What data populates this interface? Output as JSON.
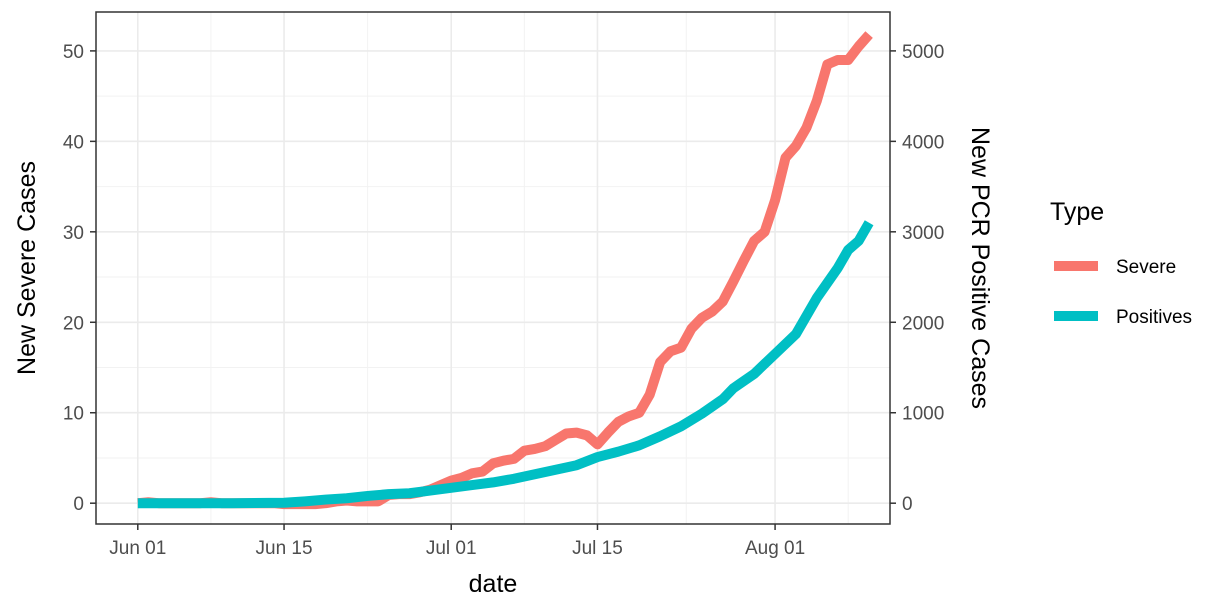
{
  "chart_data": {
    "type": "line",
    "x_type": "date",
    "x_tick_labels": [
      "Jun 01",
      "Jun 15",
      "Jul 01",
      "Jul 15",
      "Aug 01"
    ],
    "x_tick_dates": [
      "2020-06-01",
      "2020-06-15",
      "2020-07-01",
      "2020-07-15",
      "2020-08-01"
    ],
    "xlim": [
      "2020-05-28",
      "2020-08-12"
    ],
    "xlabel": "date",
    "ylabel": "New Severe Cases",
    "ylabel_right": "New PCR Positive Cases",
    "ylim": [
      -2.3,
      54.3
    ],
    "ylim_right": [
      -230,
      5430
    ],
    "y_ticks": [
      0,
      10,
      20,
      30,
      40,
      50
    ],
    "y_ticks_right": [
      0,
      1000,
      2000,
      3000,
      4000,
      5000
    ],
    "grid": true,
    "legend": {
      "title": "Type",
      "position": "right"
    },
    "series": [
      {
        "name": "Severe",
        "axis": "left",
        "color": "#F8766D",
        "points": [
          [
            "2020-06-01",
            0.0
          ],
          [
            "2020-06-02",
            0.1
          ],
          [
            "2020-06-03",
            0.0
          ],
          [
            "2020-06-04",
            0.0
          ],
          [
            "2020-06-05",
            0.0
          ],
          [
            "2020-06-06",
            0.0
          ],
          [
            "2020-06-07",
            0.0
          ],
          [
            "2020-06-08",
            0.1
          ],
          [
            "2020-06-09",
            0.0
          ],
          [
            "2020-06-10",
            0.0
          ],
          [
            "2020-06-11",
            0.0
          ],
          [
            "2020-06-12",
            0.0
          ],
          [
            "2020-06-13",
            0.0
          ],
          [
            "2020-06-14",
            0.0
          ],
          [
            "2020-06-15",
            -0.1
          ],
          [
            "2020-06-16",
            -0.1
          ],
          [
            "2020-06-17",
            -0.1
          ],
          [
            "2020-06-18",
            -0.1
          ],
          [
            "2020-06-19",
            0.0
          ],
          [
            "2020-06-20",
            0.2
          ],
          [
            "2020-06-21",
            0.3
          ],
          [
            "2020-06-22",
            0.2
          ],
          [
            "2020-06-23",
            0.2
          ],
          [
            "2020-06-24",
            0.2
          ],
          [
            "2020-06-25",
            0.9
          ],
          [
            "2020-06-26",
            1.0
          ],
          [
            "2020-06-27",
            1.0
          ],
          [
            "2020-06-28",
            1.2
          ],
          [
            "2020-06-29",
            1.5
          ],
          [
            "2020-06-30",
            2.0
          ],
          [
            "2020-07-01",
            2.5
          ],
          [
            "2020-07-02",
            2.8
          ],
          [
            "2020-07-03",
            3.3
          ],
          [
            "2020-07-04",
            3.5
          ],
          [
            "2020-07-05",
            4.4
          ],
          [
            "2020-07-06",
            4.7
          ],
          [
            "2020-07-07",
            4.9
          ],
          [
            "2020-07-08",
            5.8
          ],
          [
            "2020-07-09",
            6.0
          ],
          [
            "2020-07-10",
            6.3
          ],
          [
            "2020-07-11",
            7.0
          ],
          [
            "2020-07-12",
            7.7
          ],
          [
            "2020-07-13",
            7.8
          ],
          [
            "2020-07-14",
            7.5
          ],
          [
            "2020-07-15",
            6.5
          ],
          [
            "2020-07-16",
            7.8
          ],
          [
            "2020-07-17",
            9.0
          ],
          [
            "2020-07-18",
            9.6
          ],
          [
            "2020-07-19",
            10.0
          ],
          [
            "2020-07-20",
            12.0
          ],
          [
            "2020-07-21",
            15.6
          ],
          [
            "2020-07-22",
            16.8
          ],
          [
            "2020-07-23",
            17.2
          ],
          [
            "2020-07-24",
            19.3
          ],
          [
            "2020-07-25",
            20.5
          ],
          [
            "2020-07-26",
            21.2
          ],
          [
            "2020-07-27",
            22.3
          ],
          [
            "2020-07-28",
            24.5
          ],
          [
            "2020-07-29",
            26.8
          ],
          [
            "2020-07-30",
            29.0
          ],
          [
            "2020-07-31",
            30.0
          ],
          [
            "2020-08-01",
            33.5
          ],
          [
            "2020-08-02",
            38.2
          ],
          [
            "2020-08-03",
            39.5
          ],
          [
            "2020-08-04",
            41.5
          ],
          [
            "2020-08-05",
            44.5
          ],
          [
            "2020-08-06",
            48.5
          ],
          [
            "2020-08-07",
            49.0
          ],
          [
            "2020-08-08",
            49.0
          ],
          [
            "2020-08-09",
            50.5
          ],
          [
            "2020-08-10",
            51.8
          ]
        ]
      },
      {
        "name": "Positives",
        "axis": "right",
        "color": "#00BFC4",
        "points": [
          [
            "2020-06-01",
            0
          ],
          [
            "2020-06-05",
            0
          ],
          [
            "2020-06-10",
            0
          ],
          [
            "2020-06-15",
            5
          ],
          [
            "2020-06-17",
            20
          ],
          [
            "2020-06-19",
            40
          ],
          [
            "2020-06-21",
            55
          ],
          [
            "2020-06-23",
            80
          ],
          [
            "2020-06-25",
            100
          ],
          [
            "2020-06-27",
            110
          ],
          [
            "2020-06-29",
            140
          ],
          [
            "2020-07-01",
            170
          ],
          [
            "2020-07-03",
            200
          ],
          [
            "2020-07-05",
            230
          ],
          [
            "2020-07-07",
            270
          ],
          [
            "2020-07-09",
            320
          ],
          [
            "2020-07-11",
            370
          ],
          [
            "2020-07-13",
            420
          ],
          [
            "2020-07-15",
            510
          ],
          [
            "2020-07-17",
            570
          ],
          [
            "2020-07-19",
            640
          ],
          [
            "2020-07-21",
            740
          ],
          [
            "2020-07-23",
            850
          ],
          [
            "2020-07-25",
            990
          ],
          [
            "2020-07-27",
            1150
          ],
          [
            "2020-07-28",
            1270
          ],
          [
            "2020-07-30",
            1430
          ],
          [
            "2020-08-01",
            1650
          ],
          [
            "2020-08-03",
            1870
          ],
          [
            "2020-08-05",
            2270
          ],
          [
            "2020-08-07",
            2600
          ],
          [
            "2020-08-08",
            2800
          ],
          [
            "2020-08-09",
            2900
          ],
          [
            "2020-08-10",
            3100
          ]
        ]
      }
    ]
  }
}
